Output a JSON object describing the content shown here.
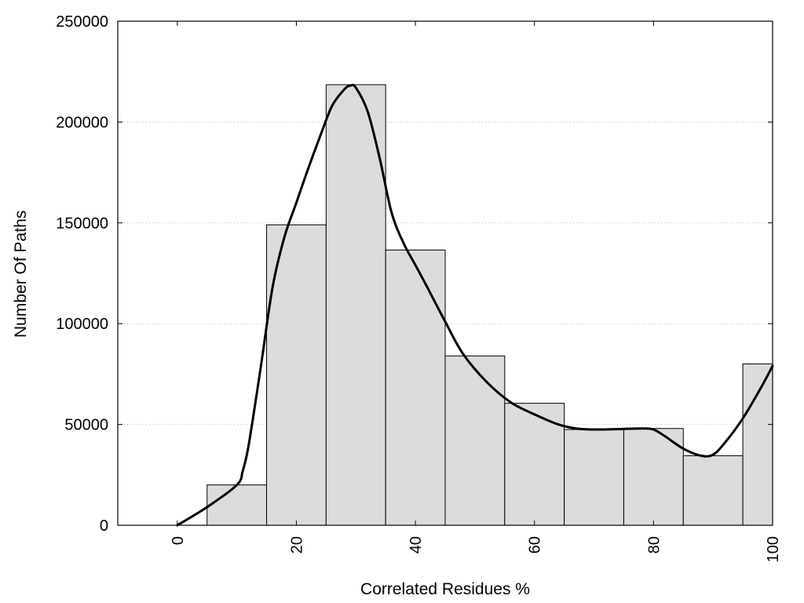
{
  "chart_data": {
    "type": "bar",
    "title": "",
    "xlabel": "Correlated Residues %",
    "ylabel": "Number Of Paths",
    "xlim": [
      -10,
      100
    ],
    "ylim": [
      0,
      250000
    ],
    "x_ticks": [
      0,
      20,
      40,
      60,
      80,
      100
    ],
    "y_ticks": [
      0,
      50000,
      100000,
      150000,
      200000,
      250000
    ],
    "grid": "horizontal dotted",
    "bins": [
      {
        "from": 5,
        "to": 15,
        "value": 20000
      },
      {
        "from": 15,
        "to": 25,
        "value": 149000
      },
      {
        "from": 25,
        "to": 35,
        "value": 218500
      },
      {
        "from": 35,
        "to": 45,
        "value": 136500
      },
      {
        "from": 45,
        "to": 55,
        "value": 84000
      },
      {
        "from": 55,
        "to": 65,
        "value": 60500
      },
      {
        "from": 65,
        "to": 75,
        "value": 47500
      },
      {
        "from": 75,
        "to": 85,
        "value": 48000
      },
      {
        "from": 85,
        "to": 95,
        "value": 34500
      },
      {
        "from": 95,
        "to": 100,
        "value": 80000
      }
    ],
    "curve": {
      "x": [
        0,
        5,
        10,
        11,
        12,
        14,
        16,
        18,
        20,
        22,
        24,
        26,
        28,
        29,
        30,
        32,
        34,
        36,
        38,
        40,
        42,
        45,
        48,
        52,
        56,
        60,
        64,
        67,
        70,
        74,
        78,
        80,
        82,
        85,
        88,
        90,
        92,
        95,
        98,
        100
      ],
      "y": [
        0,
        9000,
        20000,
        27000,
        40000,
        78000,
        118000,
        143000,
        160000,
        177000,
        193000,
        208000,
        216000,
        218000,
        217000,
        205000,
        182000,
        155000,
        140000,
        129000,
        118000,
        101000,
        85000,
        71000,
        61000,
        55000,
        50000,
        48000,
        47500,
        47700,
        48000,
        47500,
        44000,
        38000,
        34500,
        35000,
        41000,
        53000,
        68000,
        79000
      ]
    },
    "colors": {
      "bar_fill": "#dcdcdc",
      "bar_stroke": "#000000",
      "curve": "#000000",
      "grid": "#bbbbbb"
    }
  }
}
